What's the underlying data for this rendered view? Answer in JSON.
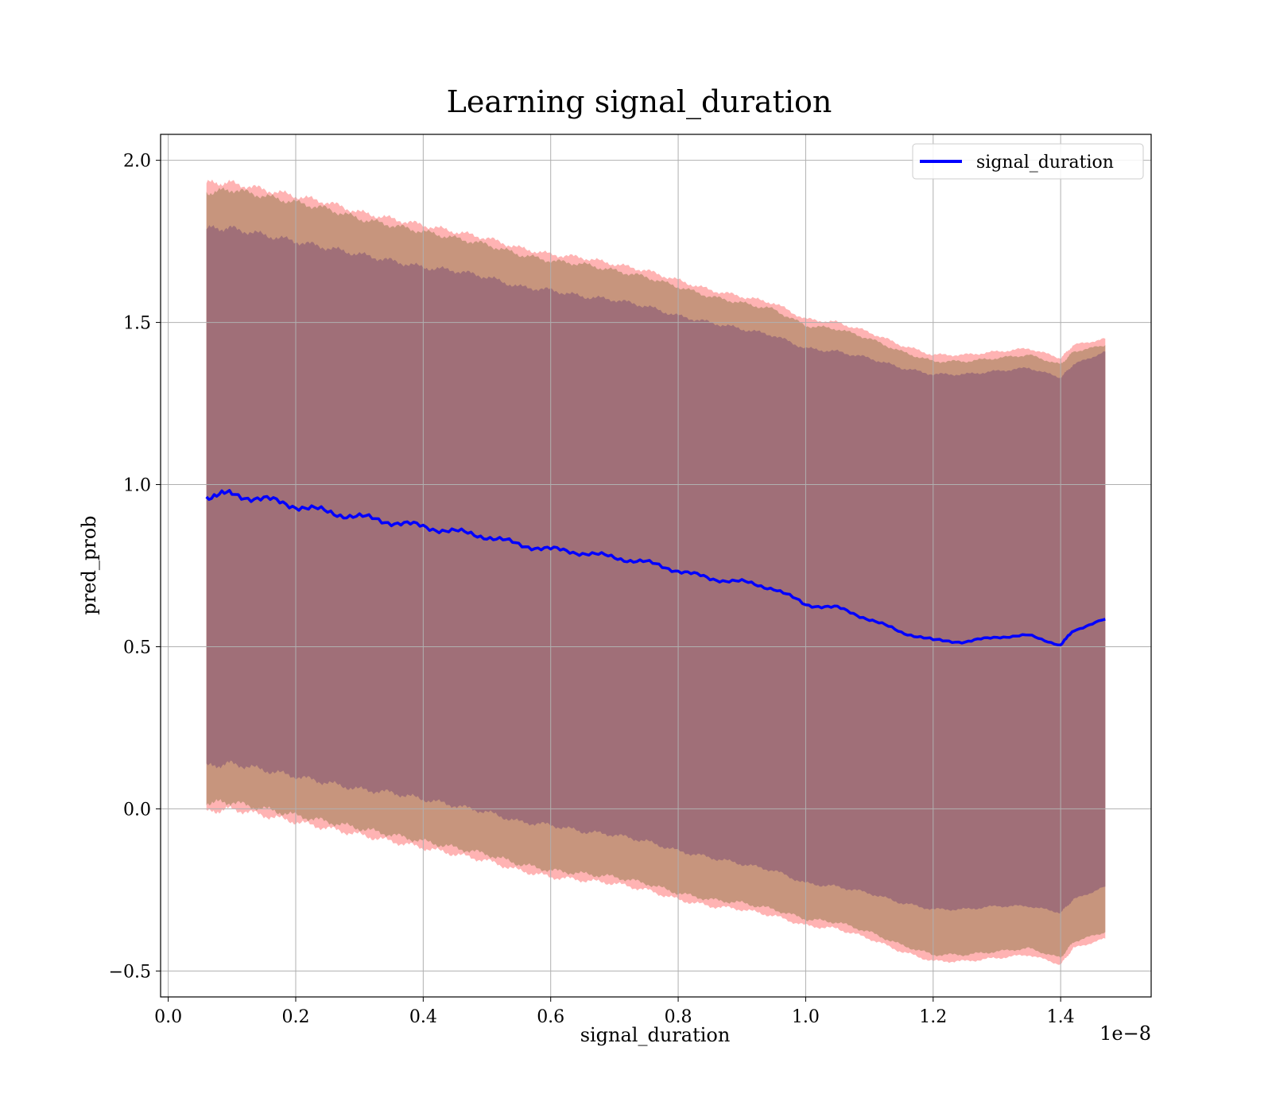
{
  "chart_data": {
    "type": "line",
    "title": "Learning signal_duration",
    "xlabel": "signal_duration",
    "ylabel": "pred_prob",
    "x_offset_label": "1e−8",
    "xlim": [
      -0.012,
      1.542
    ],
    "ylim": [
      -0.58,
      2.08
    ],
    "x_ticks": [
      0.0,
      0.2,
      0.4,
      0.6,
      0.8,
      1.0,
      1.2,
      1.4
    ],
    "x_tick_labels": [
      "0.0",
      "0.2",
      "0.4",
      "0.6",
      "0.8",
      "1.0",
      "1.2",
      "1.4"
    ],
    "y_ticks": [
      -0.5,
      0.0,
      0.5,
      1.0,
      1.5,
      2.0
    ],
    "y_tick_labels": [
      "−0.5",
      "0.0",
      "0.5",
      "1.0",
      "1.5",
      "2.0"
    ],
    "grid": true,
    "legend_position": "top-right",
    "colors": {
      "line": "#0000ff",
      "band_outer": "#ff9999",
      "band_middle": "#c4937a",
      "band_inner": "#a06f78",
      "grid": "#b0b0b0"
    },
    "series": [
      {
        "name": "signal_duration",
        "x": [
          0.06,
          0.1,
          0.15,
          0.2,
          0.25,
          0.3,
          0.35,
          0.4,
          0.45,
          0.5,
          0.55,
          0.6,
          0.65,
          0.7,
          0.75,
          0.8,
          0.85,
          0.9,
          0.95,
          1.0,
          1.05,
          1.1,
          1.15,
          1.2,
          1.25,
          1.3,
          1.35,
          1.4,
          1.42,
          1.47
        ],
        "y": [
          0.965,
          0.97,
          0.955,
          0.935,
          0.915,
          0.9,
          0.885,
          0.87,
          0.855,
          0.84,
          0.815,
          0.8,
          0.79,
          0.775,
          0.76,
          0.735,
          0.71,
          0.7,
          0.68,
          0.63,
          0.62,
          0.585,
          0.545,
          0.52,
          0.515,
          0.53,
          0.535,
          0.505,
          0.55,
          0.585
        ]
      }
    ],
    "bands": [
      {
        "x": [
          0.06,
          0.1,
          0.15,
          0.2,
          0.25,
          0.3,
          0.35,
          0.4,
          0.45,
          0.5,
          0.55,
          0.6,
          0.65,
          0.7,
          0.75,
          0.8,
          0.85,
          0.9,
          0.95,
          1.0,
          1.05,
          1.1,
          1.15,
          1.2,
          1.25,
          1.3,
          1.35,
          1.4,
          1.42,
          1.47
        ],
        "upper": [
          1.93,
          1.93,
          1.91,
          1.89,
          1.87,
          1.84,
          1.82,
          1.8,
          1.78,
          1.76,
          1.73,
          1.71,
          1.7,
          1.68,
          1.66,
          1.63,
          1.6,
          1.58,
          1.56,
          1.51,
          1.5,
          1.47,
          1.43,
          1.4,
          1.4,
          1.41,
          1.42,
          1.39,
          1.43,
          1.45
        ],
        "lower": [
          -0.01,
          0.0,
          -0.02,
          -0.04,
          -0.06,
          -0.08,
          -0.1,
          -0.12,
          -0.14,
          -0.16,
          -0.19,
          -0.21,
          -0.22,
          -0.23,
          -0.25,
          -0.28,
          -0.3,
          -0.31,
          -0.33,
          -0.36,
          -0.37,
          -0.4,
          -0.44,
          -0.47,
          -0.47,
          -0.46,
          -0.45,
          -0.48,
          -0.43,
          -0.4
        ]
      },
      {
        "x": [
          0.06,
          0.1,
          0.15,
          0.2,
          0.25,
          0.3,
          0.35,
          0.4,
          0.45,
          0.5,
          0.55,
          0.6,
          0.65,
          0.7,
          0.75,
          0.8,
          0.85,
          0.9,
          0.95,
          1.0,
          1.05,
          1.1,
          1.15,
          1.2,
          1.25,
          1.3,
          1.35,
          1.4,
          1.42,
          1.47
        ],
        "upper": [
          1.9,
          1.91,
          1.89,
          1.87,
          1.85,
          1.82,
          1.8,
          1.78,
          1.76,
          1.74,
          1.71,
          1.69,
          1.68,
          1.66,
          1.64,
          1.61,
          1.58,
          1.56,
          1.54,
          1.49,
          1.48,
          1.45,
          1.41,
          1.38,
          1.38,
          1.39,
          1.4,
          1.37,
          1.41,
          1.43
        ],
        "lower": [
          0.02,
          0.02,
          0.0,
          -0.02,
          -0.04,
          -0.06,
          -0.08,
          -0.1,
          -0.12,
          -0.14,
          -0.17,
          -0.19,
          -0.2,
          -0.21,
          -0.23,
          -0.26,
          -0.28,
          -0.29,
          -0.31,
          -0.34,
          -0.35,
          -0.38,
          -0.42,
          -0.45,
          -0.45,
          -0.44,
          -0.43,
          -0.46,
          -0.41,
          -0.38
        ]
      },
      {
        "x": [
          0.06,
          0.1,
          0.15,
          0.2,
          0.25,
          0.3,
          0.35,
          0.4,
          0.45,
          0.5,
          0.55,
          0.6,
          0.65,
          0.7,
          0.75,
          0.8,
          0.85,
          0.9,
          0.95,
          1.0,
          1.05,
          1.1,
          1.15,
          1.2,
          1.25,
          1.3,
          1.35,
          1.4,
          1.42,
          1.47
        ],
        "upper": [
          1.79,
          1.79,
          1.77,
          1.75,
          1.73,
          1.71,
          1.69,
          1.67,
          1.66,
          1.64,
          1.61,
          1.6,
          1.58,
          1.57,
          1.55,
          1.52,
          1.5,
          1.48,
          1.46,
          1.42,
          1.41,
          1.39,
          1.36,
          1.34,
          1.34,
          1.35,
          1.36,
          1.33,
          1.37,
          1.41
        ],
        "lower": [
          0.13,
          0.14,
          0.12,
          0.1,
          0.08,
          0.06,
          0.05,
          0.03,
          0.01,
          -0.01,
          -0.04,
          -0.05,
          -0.07,
          -0.08,
          -0.1,
          -0.13,
          -0.15,
          -0.17,
          -0.19,
          -0.23,
          -0.24,
          -0.26,
          -0.29,
          -0.31,
          -0.31,
          -0.3,
          -0.3,
          -0.32,
          -0.28,
          -0.24
        ]
      }
    ]
  }
}
